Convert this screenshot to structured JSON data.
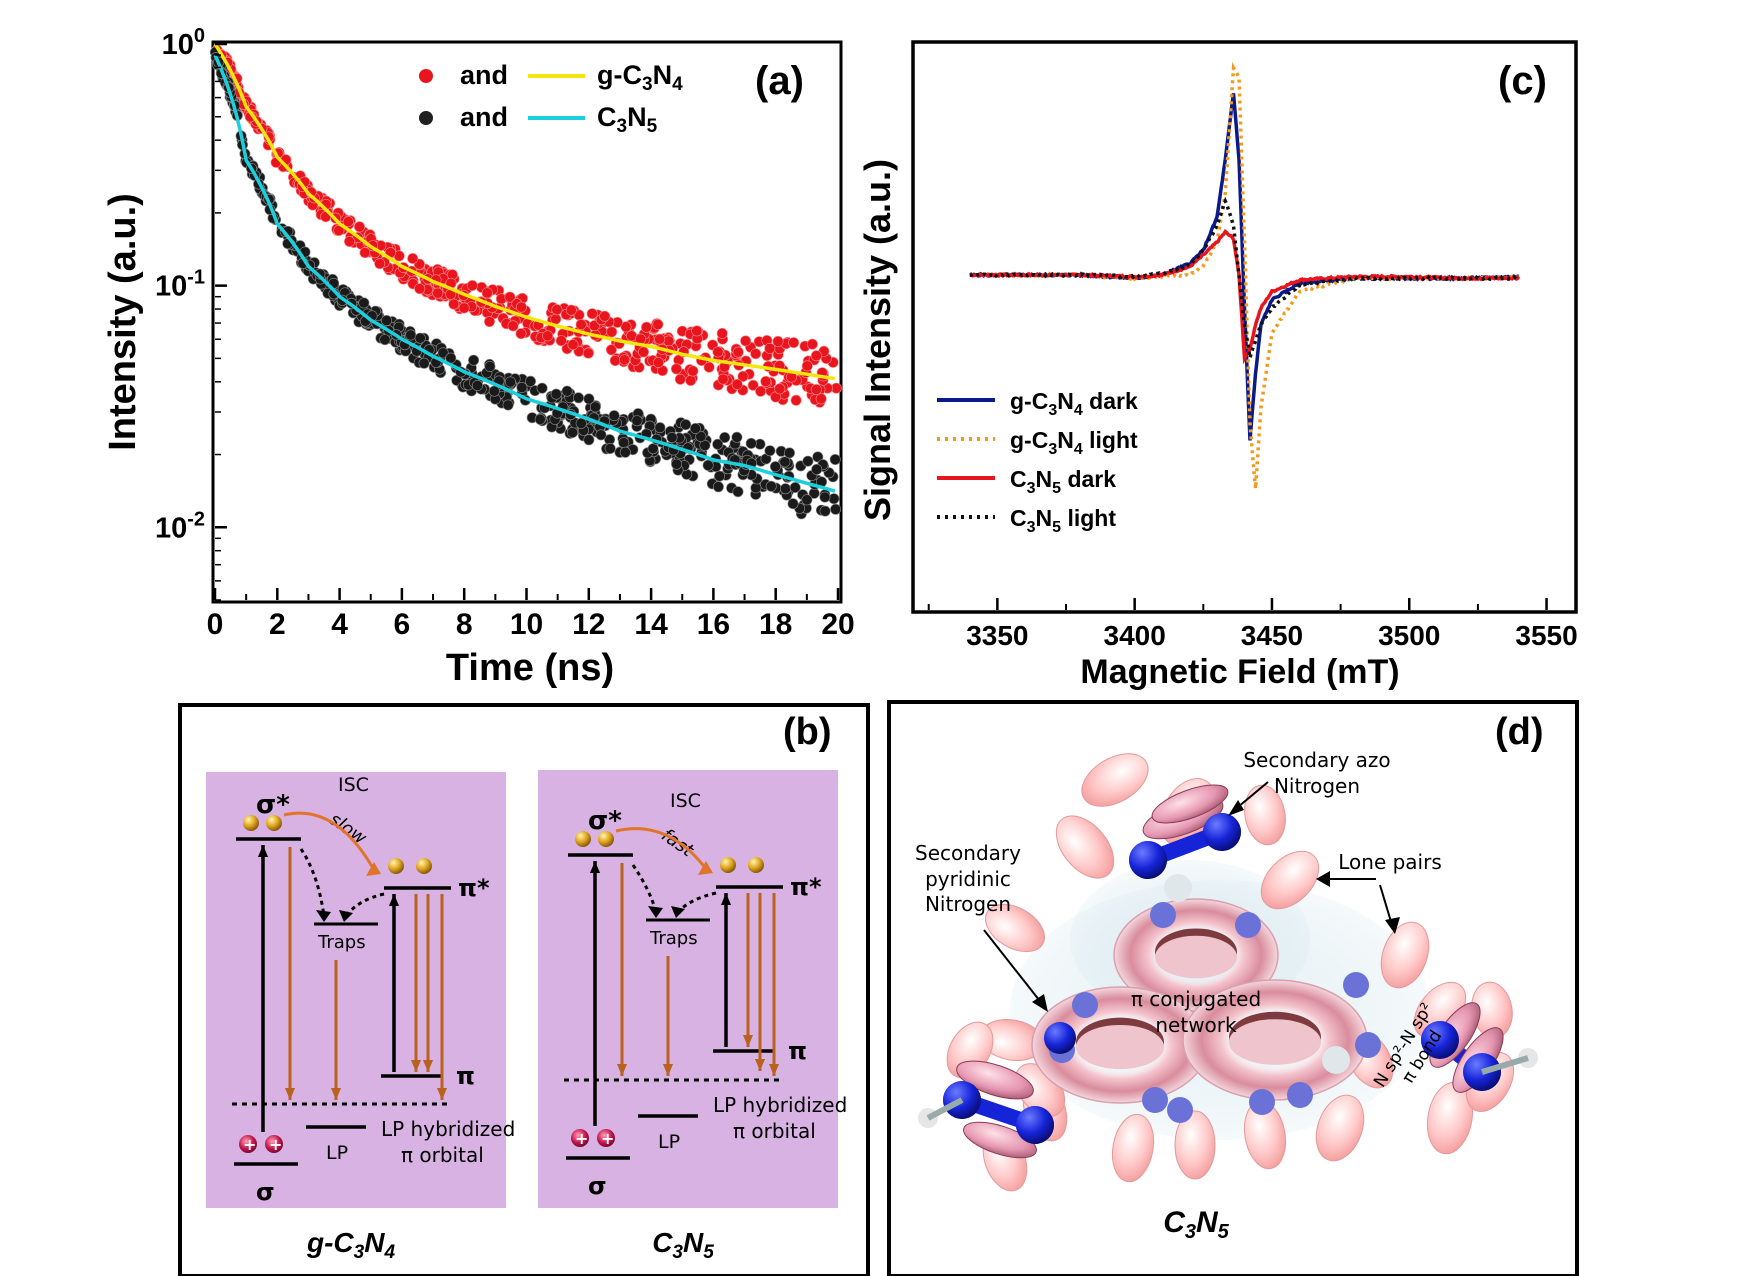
{
  "panel_a": {
    "label": "(a)",
    "xlabel": "Time (ns)",
    "ylabel": "Intensity (a.u.)",
    "xticks": [
      "0",
      "2",
      "4",
      "6",
      "8",
      "10",
      "12",
      "14",
      "16",
      "18",
      "20"
    ],
    "yticks": [
      {
        "base": "10",
        "exp": "0",
        "value": 1
      },
      {
        "base": "10",
        "exp": "-1",
        "value": 0.1
      },
      {
        "base": "10",
        "exp": "-2",
        "value": 0.01
      }
    ],
    "legend": [
      {
        "marker_color": "#e8141e",
        "word": "and",
        "line_color": "#f2e60a",
        "label_main": "g-C",
        "label_sub1": "3",
        "label_mid": "N",
        "label_sub2": "4"
      },
      {
        "marker_color": "#202020",
        "word": "and",
        "line_color": "#19d0dc",
        "label_main": "C",
        "label_sub1": "3",
        "label_mid": "N",
        "label_sub2": "5"
      }
    ]
  },
  "panel_c": {
    "label": "(c)",
    "xlabel": "Magnetic Field (mT)",
    "ylabel": "Signal Intensity (a.u.)",
    "xticks": [
      "3350",
      "3400",
      "3450",
      "3500",
      "3550"
    ],
    "legend": [
      {
        "color": "#0a1a8c",
        "style": "solid",
        "a": "g-C",
        "s1": "3",
        "b": "N",
        "s2": "4",
        "c": " dark"
      },
      {
        "color": "#f39a1e",
        "style": "dotted",
        "a": "g-C",
        "s1": "3",
        "b": "N",
        "s2": "4",
        "c": " light"
      },
      {
        "color": "#e8141e",
        "style": "solid",
        "a": "C",
        "s1": "3",
        "b": "N",
        "s2": "5",
        "c": " dark"
      },
      {
        "color": "#111111",
        "style": "dotted",
        "a": "C",
        "s1": "3",
        "b": "N",
        "s2": "5",
        "c": " light"
      }
    ]
  },
  "panel_b": {
    "label": "(b)",
    "left": {
      "sigma_star": "σ*",
      "isc": "ISC",
      "speed": "slow",
      "traps": "Traps",
      "pi_star": "π*",
      "pi": "π",
      "lp": "LP",
      "lp_hyb1": "LP hybridized",
      "lp_hyb2": "π orbital",
      "sigma": "σ",
      "name_a": "g-C",
      "name_s1": "3",
      "name_b": "N",
      "name_s2": "4"
    },
    "right": {
      "sigma_star": "σ*",
      "isc": "ISC",
      "speed": "fast",
      "traps": "Traps",
      "pi_star": "π*",
      "pi": "π",
      "lp": "LP",
      "lp_hyb1": "LP hybridized",
      "lp_hyb2": "π orbital",
      "sigma": "σ",
      "name_a": "C",
      "name_s1": "3",
      "name_b": "N",
      "name_s2": "5"
    }
  },
  "panel_d": {
    "label": "(d)",
    "azo1": "Secondary azo",
    "azo2": "Nitrogen",
    "pyr1": "Secondary",
    "pyr2": "pyridinic",
    "pyr3": "Nitrogen",
    "lone": "Lone pairs",
    "pi1": "π conjugated",
    "pi2": "network",
    "bond": "N sp²-N sp²",
    "bond2": "π bond",
    "name_a": "C",
    "name_s1": "3",
    "name_b": "N",
    "name_s2": "5"
  },
  "chart_data": [
    {
      "type": "scatter",
      "panel": "a",
      "title": "",
      "xlabel": "Time (ns)",
      "ylabel": "Intensity (a.u.)",
      "xlim": [
        0,
        20
      ],
      "ylim": [
        0.005,
        1
      ],
      "yscale": "log",
      "series": [
        {
          "name": "g-C3N4",
          "kind": "points+fit",
          "x": [
            0,
            1,
            2,
            3,
            4,
            5,
            6,
            7,
            8,
            9,
            10,
            11,
            12,
            13,
            14,
            15,
            16,
            17,
            18,
            19,
            20
          ],
          "y": [
            1.0,
            0.55,
            0.34,
            0.24,
            0.18,
            0.145,
            0.12,
            0.104,
            0.092,
            0.082,
            0.074,
            0.068,
            0.063,
            0.059,
            0.056,
            0.052,
            0.049,
            0.047,
            0.045,
            0.043,
            0.041
          ]
        },
        {
          "name": "C3N5",
          "kind": "points+fit",
          "x": [
            0,
            1,
            2,
            3,
            4,
            5,
            6,
            7,
            8,
            9,
            10,
            11,
            12,
            13,
            14,
            15,
            16,
            17,
            18,
            19,
            20
          ],
          "y": [
            0.9,
            0.33,
            0.18,
            0.12,
            0.09,
            0.072,
            0.06,
            0.051,
            0.044,
            0.039,
            0.034,
            0.031,
            0.028,
            0.025,
            0.023,
            0.021,
            0.019,
            0.018,
            0.0165,
            0.0152,
            0.014
          ]
        }
      ]
    },
    {
      "type": "line",
      "panel": "c",
      "title": "",
      "xlabel": "Magnetic Field (mT)",
      "ylabel": "Signal Intensity (a.u.)",
      "xlim": [
        3320,
        3560
      ],
      "ylim": [
        -1.2,
        1.5
      ],
      "series": [
        {
          "name": "g-C3N4 dark",
          "x": [
            3340,
            3360,
            3380,
            3400,
            3410,
            3420,
            3425,
            3430,
            3433,
            3436,
            3438,
            3440,
            3442,
            3444,
            3446,
            3450,
            3460,
            3480,
            3500,
            3520,
            3540
          ],
          "y": [
            0,
            0,
            0,
            -0.02,
            0.0,
            0.07,
            0.15,
            0.35,
            0.7,
            1.1,
            0.7,
            -0.2,
            -1.0,
            -0.6,
            -0.3,
            -0.15,
            -0.05,
            -0.02,
            -0.02,
            -0.02,
            -0.01
          ]
        },
        {
          "name": "g-C3N4 light",
          "x": [
            3340,
            3360,
            3380,
            3400,
            3410,
            3420,
            3425,
            3430,
            3433,
            3436,
            3438,
            3440,
            3442,
            3444,
            3446,
            3450,
            3460,
            3480,
            3500,
            3520,
            3540
          ],
          "y": [
            0,
            0,
            0,
            -0.02,
            -0.01,
            0.0,
            0.05,
            0.2,
            0.5,
            1.25,
            1.2,
            0.2,
            -0.9,
            -1.3,
            -0.8,
            -0.35,
            -0.1,
            -0.02,
            -0.02,
            -0.02,
            -0.01
          ]
        },
        {
          "name": "C3N5 dark",
          "x": [
            3340,
            3360,
            3380,
            3400,
            3410,
            3420,
            3425,
            3430,
            3433,
            3436,
            3438,
            3440,
            3442,
            3444,
            3446,
            3450,
            3460,
            3480,
            3500,
            3520,
            3540
          ],
          "y": [
            0,
            0,
            0,
            -0.01,
            0.0,
            0.05,
            0.12,
            0.2,
            0.26,
            0.22,
            0.0,
            -0.5,
            -0.45,
            -0.3,
            -0.2,
            -0.1,
            -0.03,
            -0.01,
            -0.01,
            -0.02,
            -0.02
          ]
        },
        {
          "name": "C3N5 light",
          "x": [
            3340,
            3360,
            3380,
            3400,
            3410,
            3420,
            3425,
            3430,
            3433,
            3436,
            3438,
            3440,
            3442,
            3444,
            3446,
            3450,
            3460,
            3480,
            3500,
            3520,
            3540
          ],
          "y": [
            0,
            0,
            0,
            -0.01,
            0.01,
            0.06,
            0.15,
            0.3,
            0.45,
            0.3,
            0.0,
            -0.3,
            -0.5,
            -0.4,
            -0.3,
            -0.2,
            -0.06,
            -0.02,
            -0.02,
            -0.02,
            -0.02
          ]
        }
      ]
    }
  ]
}
